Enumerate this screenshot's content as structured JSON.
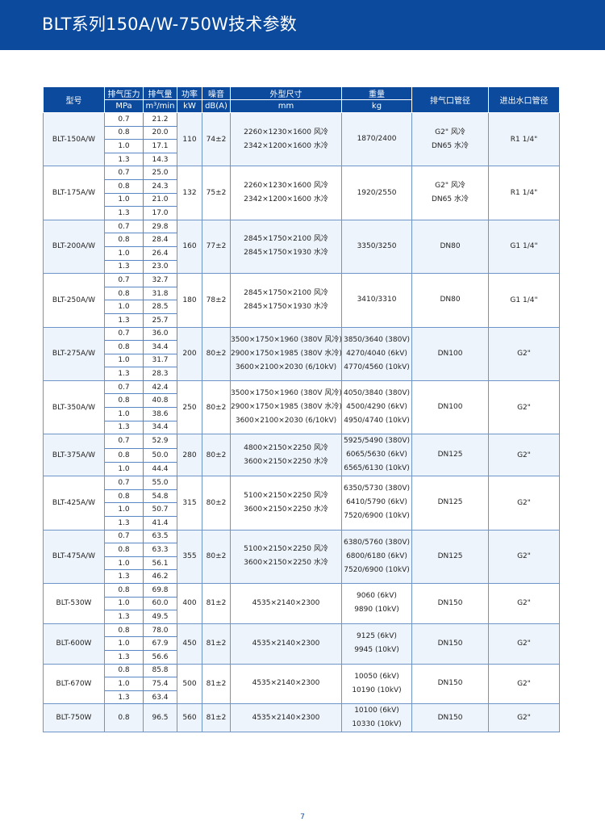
{
  "title": "BLT系列150A/W-750W技术参数",
  "headers": {
    "model": "型号",
    "pressure": "排气压力",
    "pressure_unit": "MPa",
    "flow": "排气量",
    "flow_unit": "m³/min",
    "power": "功率",
    "power_unit": "kW",
    "noise": "噪音",
    "noise_unit": "dB(A)",
    "dims": "外型尺寸",
    "dims_unit": "mm",
    "weight": "重量",
    "weight_unit": "kg",
    "outlet": "排气口管径",
    "water": "进出水口管径"
  },
  "rows": [
    {
      "model": "BLT-150A/W",
      "pressures": [
        "0.7",
        "0.8",
        "1.0",
        "1.3"
      ],
      "flows": [
        "21.2",
        "20.0",
        "17.1",
        "14.3"
      ],
      "power": "110",
      "noise": "74±2",
      "dims": [
        "2260×1230×1600 风冷",
        "2342×1200×1600 水冷"
      ],
      "weight": [
        "1870/2400"
      ],
      "outlet": [
        "G2\"  风冷",
        "DN65  水冷"
      ],
      "water": "R1 1/4\""
    },
    {
      "model": "BLT-175A/W",
      "pressures": [
        "0.7",
        "0.8",
        "1.0",
        "1.3"
      ],
      "flows": [
        "25.0",
        "24.3",
        "21.0",
        "17.0"
      ],
      "power": "132",
      "noise": "75±2",
      "dims": [
        "2260×1230×1600 风冷",
        "2342×1200×1600 水冷"
      ],
      "weight": [
        "1920/2550"
      ],
      "outlet": [
        "G2\"  风冷",
        "DN65  水冷"
      ],
      "water": "R1 1/4\""
    },
    {
      "model": "BLT-200A/W",
      "pressures": [
        "0.7",
        "0.8",
        "1.0",
        "1.3"
      ],
      "flows": [
        "29.8",
        "28.4",
        "26.4",
        "23.0"
      ],
      "power": "160",
      "noise": "77±2",
      "dims": [
        "2845×1750×2100 风冷",
        "2845×1750×1930 水冷"
      ],
      "weight": [
        "3350/3250"
      ],
      "outlet": [
        "DN80"
      ],
      "water": "G1 1/4\""
    },
    {
      "model": "BLT-250A/W",
      "pressures": [
        "0.7",
        "0.8",
        "1.0",
        "1.3"
      ],
      "flows": [
        "32.7",
        "31.8",
        "28.5",
        "25.7"
      ],
      "power": "180",
      "noise": "78±2",
      "dims": [
        "2845×1750×2100 风冷",
        "2845×1750×1930 水冷"
      ],
      "weight": [
        "3410/3310"
      ],
      "outlet": [
        "DN80"
      ],
      "water": "G1 1/4\""
    },
    {
      "model": "BLT-275A/W",
      "pressures": [
        "0.7",
        "0.8",
        "1.0",
        "1.3"
      ],
      "flows": [
        "36.0",
        "34.4",
        "31.7",
        "28.3"
      ],
      "power": "200",
      "noise": "80±2",
      "dims": [
        "3500×1750×1960 (380V 风冷)",
        "2900×1750×1985 (380V 水冷)",
        "3600×2100×2030 (6/10kV)"
      ],
      "weight": [
        "3850/3640 (380V)",
        "4270/4040 (6kV)",
        "4770/4560 (10kV)"
      ],
      "outlet": [
        "DN100"
      ],
      "water": "G2\""
    },
    {
      "model": "BLT-350A/W",
      "pressures": [
        "0.7",
        "0.8",
        "1.0",
        "1.3"
      ],
      "flows": [
        "42.4",
        "40.8",
        "38.6",
        "34.4"
      ],
      "power": "250",
      "noise": "80±2",
      "dims": [
        "3500×1750×1960 (380V 风冷)",
        "2900×1750×1985 (380V 水冷)",
        "3600×2100×2030 (6/10kV)"
      ],
      "weight": [
        "4050/3840 (380V)",
        "4500/4290 (6kV)",
        "4950/4740 (10kV)"
      ],
      "outlet": [
        "DN100"
      ],
      "water": "G2\""
    },
    {
      "model": "BLT-375A/W",
      "pressures": [
        "0.7",
        "0.8",
        "1.0"
      ],
      "flows": [
        "52.9",
        "50.0",
        "44.4"
      ],
      "power": "280",
      "noise": "80±2",
      "dims": [
        "4800×2150×2250 风冷",
        "3600×2150×2250 水冷"
      ],
      "weight": [
        "5925/5490 (380V)",
        "6065/5630 (6kV)",
        "6565/6130 (10kV)"
      ],
      "outlet": [
        "DN125"
      ],
      "water": "G2\""
    },
    {
      "model": "BLT-425A/W",
      "pressures": [
        "0.7",
        "0.8",
        "1.0",
        "1.3"
      ],
      "flows": [
        "55.0",
        "54.8",
        "50.7",
        "41.4"
      ],
      "power": "315",
      "noise": "80±2",
      "dims": [
        "5100×2150×2250 风冷",
        "3600×2150×2250 水冷"
      ],
      "weight": [
        "6350/5730 (380V)",
        "6410/5790 (6kV)",
        "7520/6900 (10kV)"
      ],
      "outlet": [
        "DN125"
      ],
      "water": "G2\""
    },
    {
      "model": "BLT-475A/W",
      "pressures": [
        "0.7",
        "0.8",
        "1.0",
        "1.3"
      ],
      "flows": [
        "63.5",
        "63.3",
        "56.1",
        "46.2"
      ],
      "power": "355",
      "noise": "80±2",
      "dims": [
        "5100×2150×2250 风冷",
        "3600×2150×2250 水冷"
      ],
      "weight": [
        "6380/5760 (380V)",
        "6800/6180 (6kV)",
        "7520/6900 (10kV)"
      ],
      "outlet": [
        "DN125"
      ],
      "water": "G2\""
    },
    {
      "model": "BLT-530W",
      "pressures": [
        "0.8",
        "1.0",
        "1.3"
      ],
      "flows": [
        "69.8",
        "60.0",
        "49.5"
      ],
      "power": "400",
      "noise": "81±2",
      "dims": [
        "4535×2140×2300"
      ],
      "weight": [
        "9060 (6kV)",
        "9890 (10kV)"
      ],
      "outlet": [
        "DN150"
      ],
      "water": "G2\""
    },
    {
      "model": "BLT-600W",
      "pressures": [
        "0.8",
        "1.0",
        "1.3"
      ],
      "flows": [
        "78.0",
        "67.9",
        "56.6"
      ],
      "power": "450",
      "noise": "81±2",
      "dims": [
        "4535×2140×2300"
      ],
      "weight": [
        "9125 (6kV)",
        "9945 (10kV)"
      ],
      "outlet": [
        "DN150"
      ],
      "water": "G2\""
    },
    {
      "model": "BLT-670W",
      "pressures": [
        "0.8",
        "1.0",
        "1.3"
      ],
      "flows": [
        "85.8",
        "75.4",
        "63.4"
      ],
      "power": "500",
      "noise": "81±2",
      "dims": [
        "4535×2140×2300"
      ],
      "weight": [
        "10050 (6kV)",
        "10190 (10kV)"
      ],
      "outlet": [
        "DN150"
      ],
      "water": "G2\""
    },
    {
      "model": "BLT-750W",
      "pressures": [
        "0.8"
      ],
      "flows": [
        "96.5"
      ],
      "power": "560",
      "noise": "81±2",
      "dims": [
        "4535×2140×2300"
      ],
      "weight": [
        "10100 (6kV)",
        "10330 (10kV)"
      ],
      "outlet": [
        "DN150"
      ],
      "water": "G2\""
    }
  ],
  "page_number": "7",
  "colors": {
    "brand": "#0b4a9c",
    "alt_row": "#eef4fb",
    "border": "#6f94c8"
  }
}
